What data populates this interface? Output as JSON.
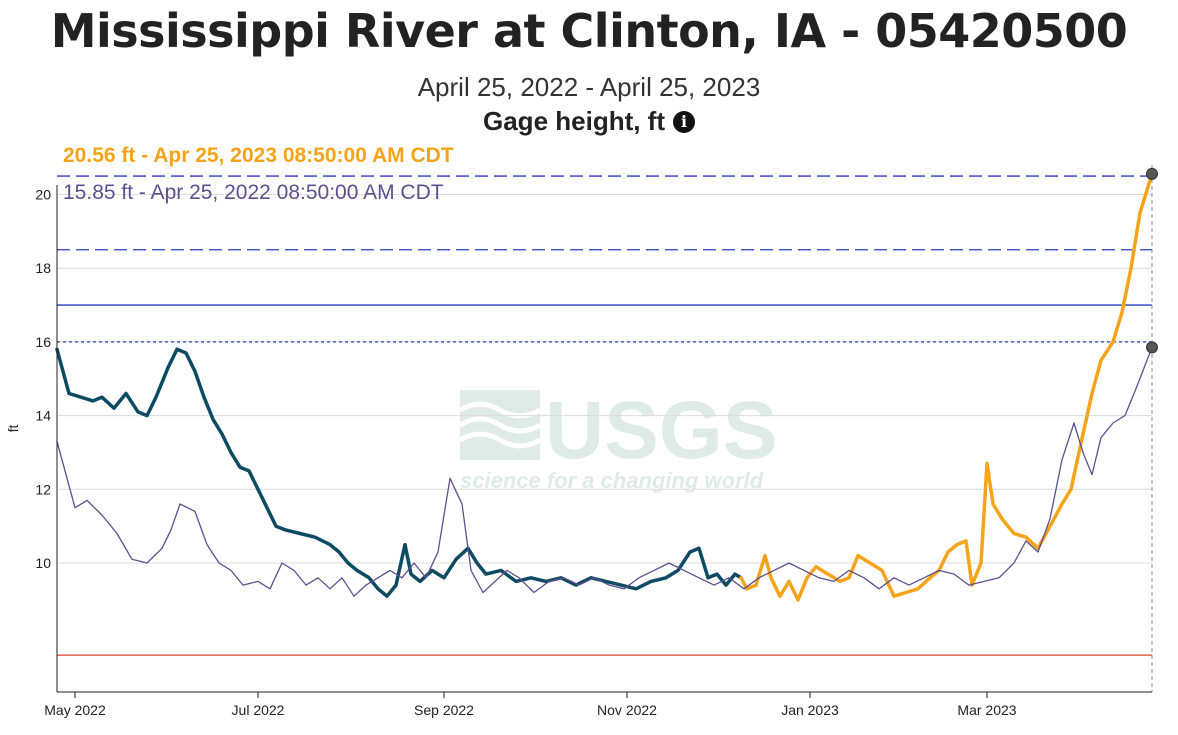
{
  "header": {
    "title": "Mississippi River at Clinton, IA - 05420500",
    "date_range": "April 25, 2022 - April 25, 2023",
    "parameter": "Gage height, ft"
  },
  "readouts": {
    "current": "20.56 ft - Apr 25, 2023 08:50:00 AM CDT",
    "previous": "15.85 ft - Apr 25, 2022 08:50:00 AM CDT"
  },
  "watermark": {
    "logo": "USGS",
    "tagline": "science for a changing world"
  },
  "chart_data": {
    "type": "line",
    "ylabel": "ft",
    "ylim": [
      6.5,
      20.8
    ],
    "xlim": [
      "2022-04-25",
      "2023-04-25"
    ],
    "x_ticks": [
      {
        "date": "2022-05-01",
        "label": "May 2022"
      },
      {
        "date": "2022-07-01",
        "label": "Jul 2022"
      },
      {
        "date": "2022-09-01",
        "label": "Sep 2022"
      },
      {
        "date": "2022-11-01",
        "label": "Nov 2022"
      },
      {
        "date": "2023-01-01",
        "label": "Jan 2023"
      },
      {
        "date": "2023-03-01",
        "label": "Mar 2023"
      }
    ],
    "y_ticks": [
      10,
      12,
      14,
      16,
      18,
      20
    ],
    "grid": true,
    "reference_lines": [
      {
        "value": 20.5,
        "style": "dashed",
        "color": "#2a3bc8"
      },
      {
        "value": 18.5,
        "style": "dashed",
        "color": "#2a3bc8"
      },
      {
        "value": 17.0,
        "style": "solid",
        "color": "#2a3bc8"
      },
      {
        "value": 16.0,
        "style": "dotted",
        "color": "#2a3bc8"
      },
      {
        "value": 7.5,
        "style": "solid",
        "color": "#e0412b"
      }
    ],
    "series": [
      {
        "color": "#0d4a63",
        "points": [
          [
            "2022-04-25",
            15.8
          ],
          [
            "2022-04-27",
            15.2
          ],
          [
            "2022-04-29",
            14.6
          ],
          [
            "2022-05-03",
            14.5
          ],
          [
            "2022-05-07",
            14.4
          ],
          [
            "2022-05-10",
            14.5
          ],
          [
            "2022-05-14",
            14.2
          ],
          [
            "2022-05-18",
            14.6
          ],
          [
            "2022-05-22",
            14.1
          ],
          [
            "2022-05-25",
            14.0
          ],
          [
            "2022-05-28",
            14.5
          ],
          [
            "2022-06-01",
            15.3
          ],
          [
            "2022-06-04",
            15.8
          ],
          [
            "2022-06-07",
            15.7
          ],
          [
            "2022-06-10",
            15.2
          ],
          [
            "2022-06-13",
            14.5
          ],
          [
            "2022-06-16",
            13.9
          ],
          [
            "2022-06-19",
            13.5
          ],
          [
            "2022-06-22",
            13.0
          ],
          [
            "2022-06-25",
            12.6
          ],
          [
            "2022-06-28",
            12.5
          ],
          [
            "2022-07-01",
            12.0
          ],
          [
            "2022-07-04",
            11.5
          ],
          [
            "2022-07-07",
            11.0
          ],
          [
            "2022-07-10",
            10.9
          ],
          [
            "2022-07-15",
            10.8
          ],
          [
            "2022-07-20",
            10.7
          ],
          [
            "2022-07-25",
            10.5
          ],
          [
            "2022-07-28",
            10.3
          ],
          [
            "2022-07-31",
            10.0
          ],
          [
            "2022-08-03",
            9.8
          ],
          [
            "2022-08-07",
            9.6
          ],
          [
            "2022-08-10",
            9.3
          ],
          [
            "2022-08-13",
            9.1
          ],
          [
            "2022-08-16",
            9.4
          ],
          [
            "2022-08-19",
            10.5
          ],
          [
            "2022-08-21",
            9.7
          ],
          [
            "2022-08-24",
            9.5
          ],
          [
            "2022-08-28",
            9.8
          ],
          [
            "2022-09-01",
            9.6
          ],
          [
            "2022-09-05",
            10.1
          ],
          [
            "2022-09-09",
            10.4
          ],
          [
            "2022-09-12",
            10.0
          ],
          [
            "2022-09-15",
            9.7
          ],
          [
            "2022-09-20",
            9.8
          ],
          [
            "2022-09-25",
            9.5
          ],
          [
            "2022-09-30",
            9.6
          ],
          [
            "2022-10-05",
            9.5
          ],
          [
            "2022-10-10",
            9.6
          ],
          [
            "2022-10-15",
            9.4
          ],
          [
            "2022-10-20",
            9.6
          ],
          [
            "2022-10-25",
            9.5
          ],
          [
            "2022-10-30",
            9.4
          ],
          [
            "2022-11-04",
            9.3
          ],
          [
            "2022-11-09",
            9.5
          ],
          [
            "2022-11-14",
            9.6
          ],
          [
            "2022-11-18",
            9.8
          ],
          [
            "2022-11-22",
            10.3
          ],
          [
            "2022-11-25",
            10.4
          ],
          [
            "2022-11-28",
            9.6
          ],
          [
            "2022-12-01",
            9.7
          ],
          [
            "2022-12-04",
            9.4
          ],
          [
            "2022-12-07",
            9.7
          ],
          [
            "2022-12-09",
            9.6
          ]
        ]
      },
      {
        "color": "#f5a41a",
        "points": [
          [
            "2022-12-09",
            9.6
          ],
          [
            "2022-12-11",
            9.3
          ],
          [
            "2022-12-14",
            9.4
          ],
          [
            "2022-12-17",
            10.2
          ],
          [
            "2022-12-19",
            9.6
          ],
          [
            "2022-12-22",
            9.1
          ],
          [
            "2022-12-25",
            9.5
          ],
          [
            "2022-12-28",
            9.0
          ],
          [
            "2022-12-31",
            9.6
          ],
          [
            "2023-01-03",
            9.9
          ],
          [
            "2023-01-07",
            9.7
          ],
          [
            "2023-01-11",
            9.5
          ],
          [
            "2023-01-14",
            9.6
          ],
          [
            "2023-01-17",
            10.2
          ],
          [
            "2023-01-21",
            10.0
          ],
          [
            "2023-01-25",
            9.8
          ],
          [
            "2023-01-29",
            9.1
          ],
          [
            "2023-02-02",
            9.2
          ],
          [
            "2023-02-06",
            9.3
          ],
          [
            "2023-02-10",
            9.6
          ],
          [
            "2023-02-13",
            9.8
          ],
          [
            "2023-02-16",
            10.3
          ],
          [
            "2023-02-19",
            10.5
          ],
          [
            "2023-02-22",
            10.6
          ],
          [
            "2023-02-24",
            9.4
          ],
          [
            "2023-02-27",
            10.0
          ],
          [
            "2023-03-01",
            12.7
          ],
          [
            "2023-03-03",
            11.6
          ],
          [
            "2023-03-06",
            11.2
          ],
          [
            "2023-03-10",
            10.8
          ],
          [
            "2023-03-14",
            10.7
          ],
          [
            "2023-03-18",
            10.4
          ],
          [
            "2023-03-22",
            11.0
          ],
          [
            "2023-03-26",
            11.6
          ],
          [
            "2023-03-29",
            12.0
          ],
          [
            "2023-04-02",
            13.5
          ],
          [
            "2023-04-05",
            14.6
          ],
          [
            "2023-04-08",
            15.5
          ],
          [
            "2023-04-12",
            16.0
          ],
          [
            "2023-04-15",
            16.8
          ],
          [
            "2023-04-18",
            18.0
          ],
          [
            "2023-04-21",
            19.5
          ],
          [
            "2023-04-25",
            20.56
          ]
        ]
      },
      {
        "color": "#5e4f8e",
        "points": [
          [
            "2022-04-25",
            13.3
          ],
          [
            "2022-04-28",
            12.4
          ],
          [
            "2022-05-01",
            11.5
          ],
          [
            "2022-05-05",
            11.7
          ],
          [
            "2022-05-10",
            11.3
          ],
          [
            "2022-05-15",
            10.8
          ],
          [
            "2022-05-20",
            10.1
          ],
          [
            "2022-05-25",
            10.0
          ],
          [
            "2022-05-30",
            10.4
          ],
          [
            "2022-06-02",
            10.9
          ],
          [
            "2022-06-05",
            11.6
          ],
          [
            "2022-06-10",
            11.4
          ],
          [
            "2022-06-14",
            10.5
          ],
          [
            "2022-06-18",
            10.0
          ],
          [
            "2022-06-22",
            9.8
          ],
          [
            "2022-06-26",
            9.4
          ],
          [
            "2022-07-01",
            9.5
          ],
          [
            "2022-07-05",
            9.3
          ],
          [
            "2022-07-09",
            10.0
          ],
          [
            "2022-07-13",
            9.8
          ],
          [
            "2022-07-17",
            9.4
          ],
          [
            "2022-07-21",
            9.6
          ],
          [
            "2022-07-25",
            9.3
          ],
          [
            "2022-07-29",
            9.6
          ],
          [
            "2022-08-02",
            9.1
          ],
          [
            "2022-08-06",
            9.4
          ],
          [
            "2022-08-10",
            9.6
          ],
          [
            "2022-08-14",
            9.8
          ],
          [
            "2022-08-18",
            9.6
          ],
          [
            "2022-08-22",
            10.0
          ],
          [
            "2022-08-26",
            9.6
          ],
          [
            "2022-08-30",
            10.3
          ],
          [
            "2022-09-03",
            12.3
          ],
          [
            "2022-09-07",
            11.6
          ],
          [
            "2022-09-10",
            9.8
          ],
          [
            "2022-09-14",
            9.2
          ],
          [
            "2022-09-18",
            9.5
          ],
          [
            "2022-09-22",
            9.8
          ],
          [
            "2022-09-26",
            9.6
          ],
          [
            "2022-10-01",
            9.2
          ],
          [
            "2022-10-06",
            9.5
          ],
          [
            "2022-10-11",
            9.6
          ],
          [
            "2022-10-16",
            9.4
          ],
          [
            "2022-10-21",
            9.6
          ],
          [
            "2022-10-26",
            9.4
          ],
          [
            "2022-10-31",
            9.3
          ],
          [
            "2022-11-05",
            9.6
          ],
          [
            "2022-11-10",
            9.8
          ],
          [
            "2022-11-15",
            10.0
          ],
          [
            "2022-11-20",
            9.8
          ],
          [
            "2022-11-25",
            9.6
          ],
          [
            "2022-11-30",
            9.4
          ],
          [
            "2022-12-05",
            9.6
          ],
          [
            "2022-12-10",
            9.3
          ],
          [
            "2022-12-15",
            9.6
          ],
          [
            "2022-12-20",
            9.8
          ],
          [
            "2022-12-25",
            10.0
          ],
          [
            "2022-12-30",
            9.8
          ],
          [
            "2023-01-04",
            9.6
          ],
          [
            "2023-01-09",
            9.5
          ],
          [
            "2023-01-14",
            9.8
          ],
          [
            "2023-01-19",
            9.6
          ],
          [
            "2023-01-24",
            9.3
          ],
          [
            "2023-01-29",
            9.6
          ],
          [
            "2023-02-03",
            9.4
          ],
          [
            "2023-02-08",
            9.6
          ],
          [
            "2023-02-13",
            9.8
          ],
          [
            "2023-02-18",
            9.7
          ],
          [
            "2023-02-23",
            9.4
          ],
          [
            "2023-02-28",
            9.5
          ],
          [
            "2023-03-05",
            9.6
          ],
          [
            "2023-03-10",
            10.0
          ],
          [
            "2023-03-14",
            10.6
          ],
          [
            "2023-03-18",
            10.3
          ],
          [
            "2023-03-22",
            11.2
          ],
          [
            "2023-03-26",
            12.8
          ],
          [
            "2023-03-30",
            13.8
          ],
          [
            "2023-04-02",
            13.0
          ],
          [
            "2023-04-05",
            12.4
          ],
          [
            "2023-04-08",
            13.4
          ],
          [
            "2023-04-12",
            13.8
          ],
          [
            "2023-04-16",
            14.0
          ],
          [
            "2023-04-20",
            14.8
          ],
          [
            "2023-04-25",
            15.85
          ]
        ]
      }
    ]
  }
}
